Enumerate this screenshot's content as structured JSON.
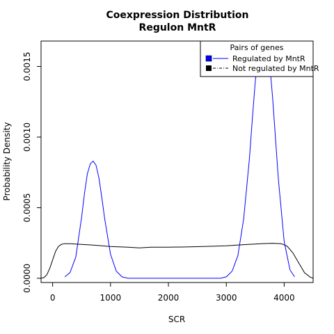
{
  "chart_data": {
    "type": "line",
    "title": "Coexpression Distribution",
    "subtitle": "Regulon MntR",
    "xlabel": "SCR",
    "ylabel": "Probability Density",
    "xlim": [
      -200,
      4500
    ],
    "ylim": [
      -3e-05,
      0.00168
    ],
    "xticks": [
      0,
      1000,
      2000,
      3000,
      4000
    ],
    "xtick_labels": [
      "0",
      "1000",
      "2000",
      "3000",
      "4000"
    ],
    "yticks": [
      0.0,
      0.0005,
      0.001,
      0.0015
    ],
    "ytick_labels": [
      "0.0000",
      "0.0005",
      "0.0010",
      "0.0015"
    ],
    "grid": false,
    "legend": {
      "title": "Pairs of genes",
      "position": "top-right",
      "entries": [
        "Regulated by  MntR",
        "Not regulated by  MntR"
      ]
    },
    "series": [
      {
        "name": "Regulated by  MntR",
        "color": "#0000ff",
        "line_style": "solid",
        "x": [
          210,
          300,
          400,
          500,
          550,
          600,
          650,
          700,
          750,
          800,
          850,
          900,
          1000,
          1100,
          1200,
          1300,
          1500,
          2000,
          2500,
          2900,
          3000,
          3100,
          3200,
          3300,
          3400,
          3450,
          3500,
          3550,
          3600,
          3650,
          3700,
          3750,
          3800,
          3850,
          3900,
          4000,
          4100,
          4180
        ],
        "y": [
          1e-05,
          4e-05,
          0.00015,
          0.00043,
          0.0006,
          0.00074,
          0.00081,
          0.00083,
          0.0008,
          0.00071,
          0.00057,
          0.00042,
          0.00017,
          5e-05,
          1e-05,
          0.0,
          0.0,
          0.0,
          0.0,
          0.0,
          1e-05,
          5e-05,
          0.00016,
          0.00042,
          0.00085,
          0.00113,
          0.00139,
          0.0016,
          0.00172,
          0.00175,
          0.00168,
          0.00152,
          0.00128,
          0.00099,
          0.0007,
          0.00026,
          6e-05,
          1e-05
        ]
      },
      {
        "name": "Not regulated by  MntR",
        "color": "#000000",
        "line_style": "solid",
        "x": [
          -200,
          -150,
          -100,
          -50,
          0,
          50,
          100,
          150,
          200,
          300,
          500,
          700,
          1000,
          1300,
          1500,
          1700,
          2000,
          2300,
          2600,
          3000,
          3300,
          3600,
          3800,
          3950,
          4050,
          4150,
          4250,
          4350,
          4450,
          4500
        ],
        "y": [
          0.0,
          5e-06,
          2.5e-05,
          7e-05,
          0.00013,
          0.00019,
          0.000225,
          0.00024,
          0.000245,
          0.000245,
          0.00024,
          0.000235,
          0.000225,
          0.00022,
          0.000215,
          0.00022,
          0.00022,
          0.000222,
          0.000225,
          0.00023,
          0.000238,
          0.000245,
          0.000248,
          0.000245,
          0.000228,
          0.00018,
          0.00011,
          4e-05,
          8e-06,
          0.0
        ]
      }
    ]
  }
}
